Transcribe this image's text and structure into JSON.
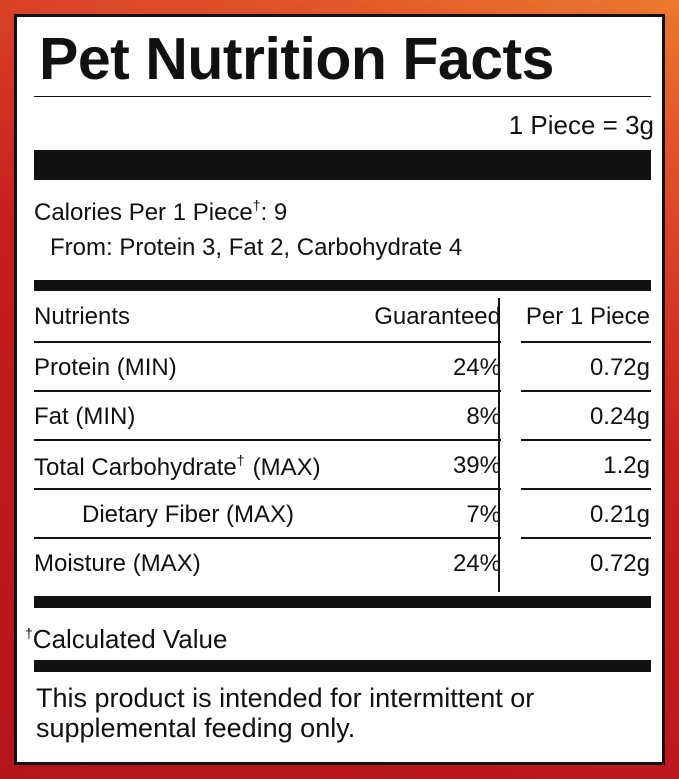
{
  "title": "Pet Nutrition Facts",
  "serving": "1 Piece = 3g",
  "calories": {
    "label": "Calories Per 1 Piece",
    "mark": "†",
    "value": ": 9"
  },
  "calories_from": "From: Protein 3, Fat 2, Carbohydrate 4",
  "table": {
    "header": [
      "Nutrients",
      "Guaranteed",
      "Per 1 Piece"
    ],
    "rows": [
      {
        "name": "Protein (MIN)",
        "guaranteed": "24%",
        "per_piece": "0.72g"
      },
      {
        "name": "Fat (MIN)",
        "guaranteed": "8%",
        "per_piece": "0.24g"
      },
      {
        "name": "Total Carbohydrate",
        "mark": "†",
        "qualifier": "(MAX)",
        "guaranteed": "39%",
        "per_piece": "1.2g"
      },
      {
        "name": "Dietary Fiber (MAX)",
        "guaranteed": "7%",
        "per_piece": "0.21g",
        "indent": true
      },
      {
        "name": "Moisture (MAX)",
        "guaranteed": "24%",
        "per_piece": "0.72g"
      }
    ]
  },
  "footnote": {
    "mark": "†",
    "text": "Calculated Value"
  },
  "disclaimer": "This product is intended for intermittent or supplemental feeding only."
}
